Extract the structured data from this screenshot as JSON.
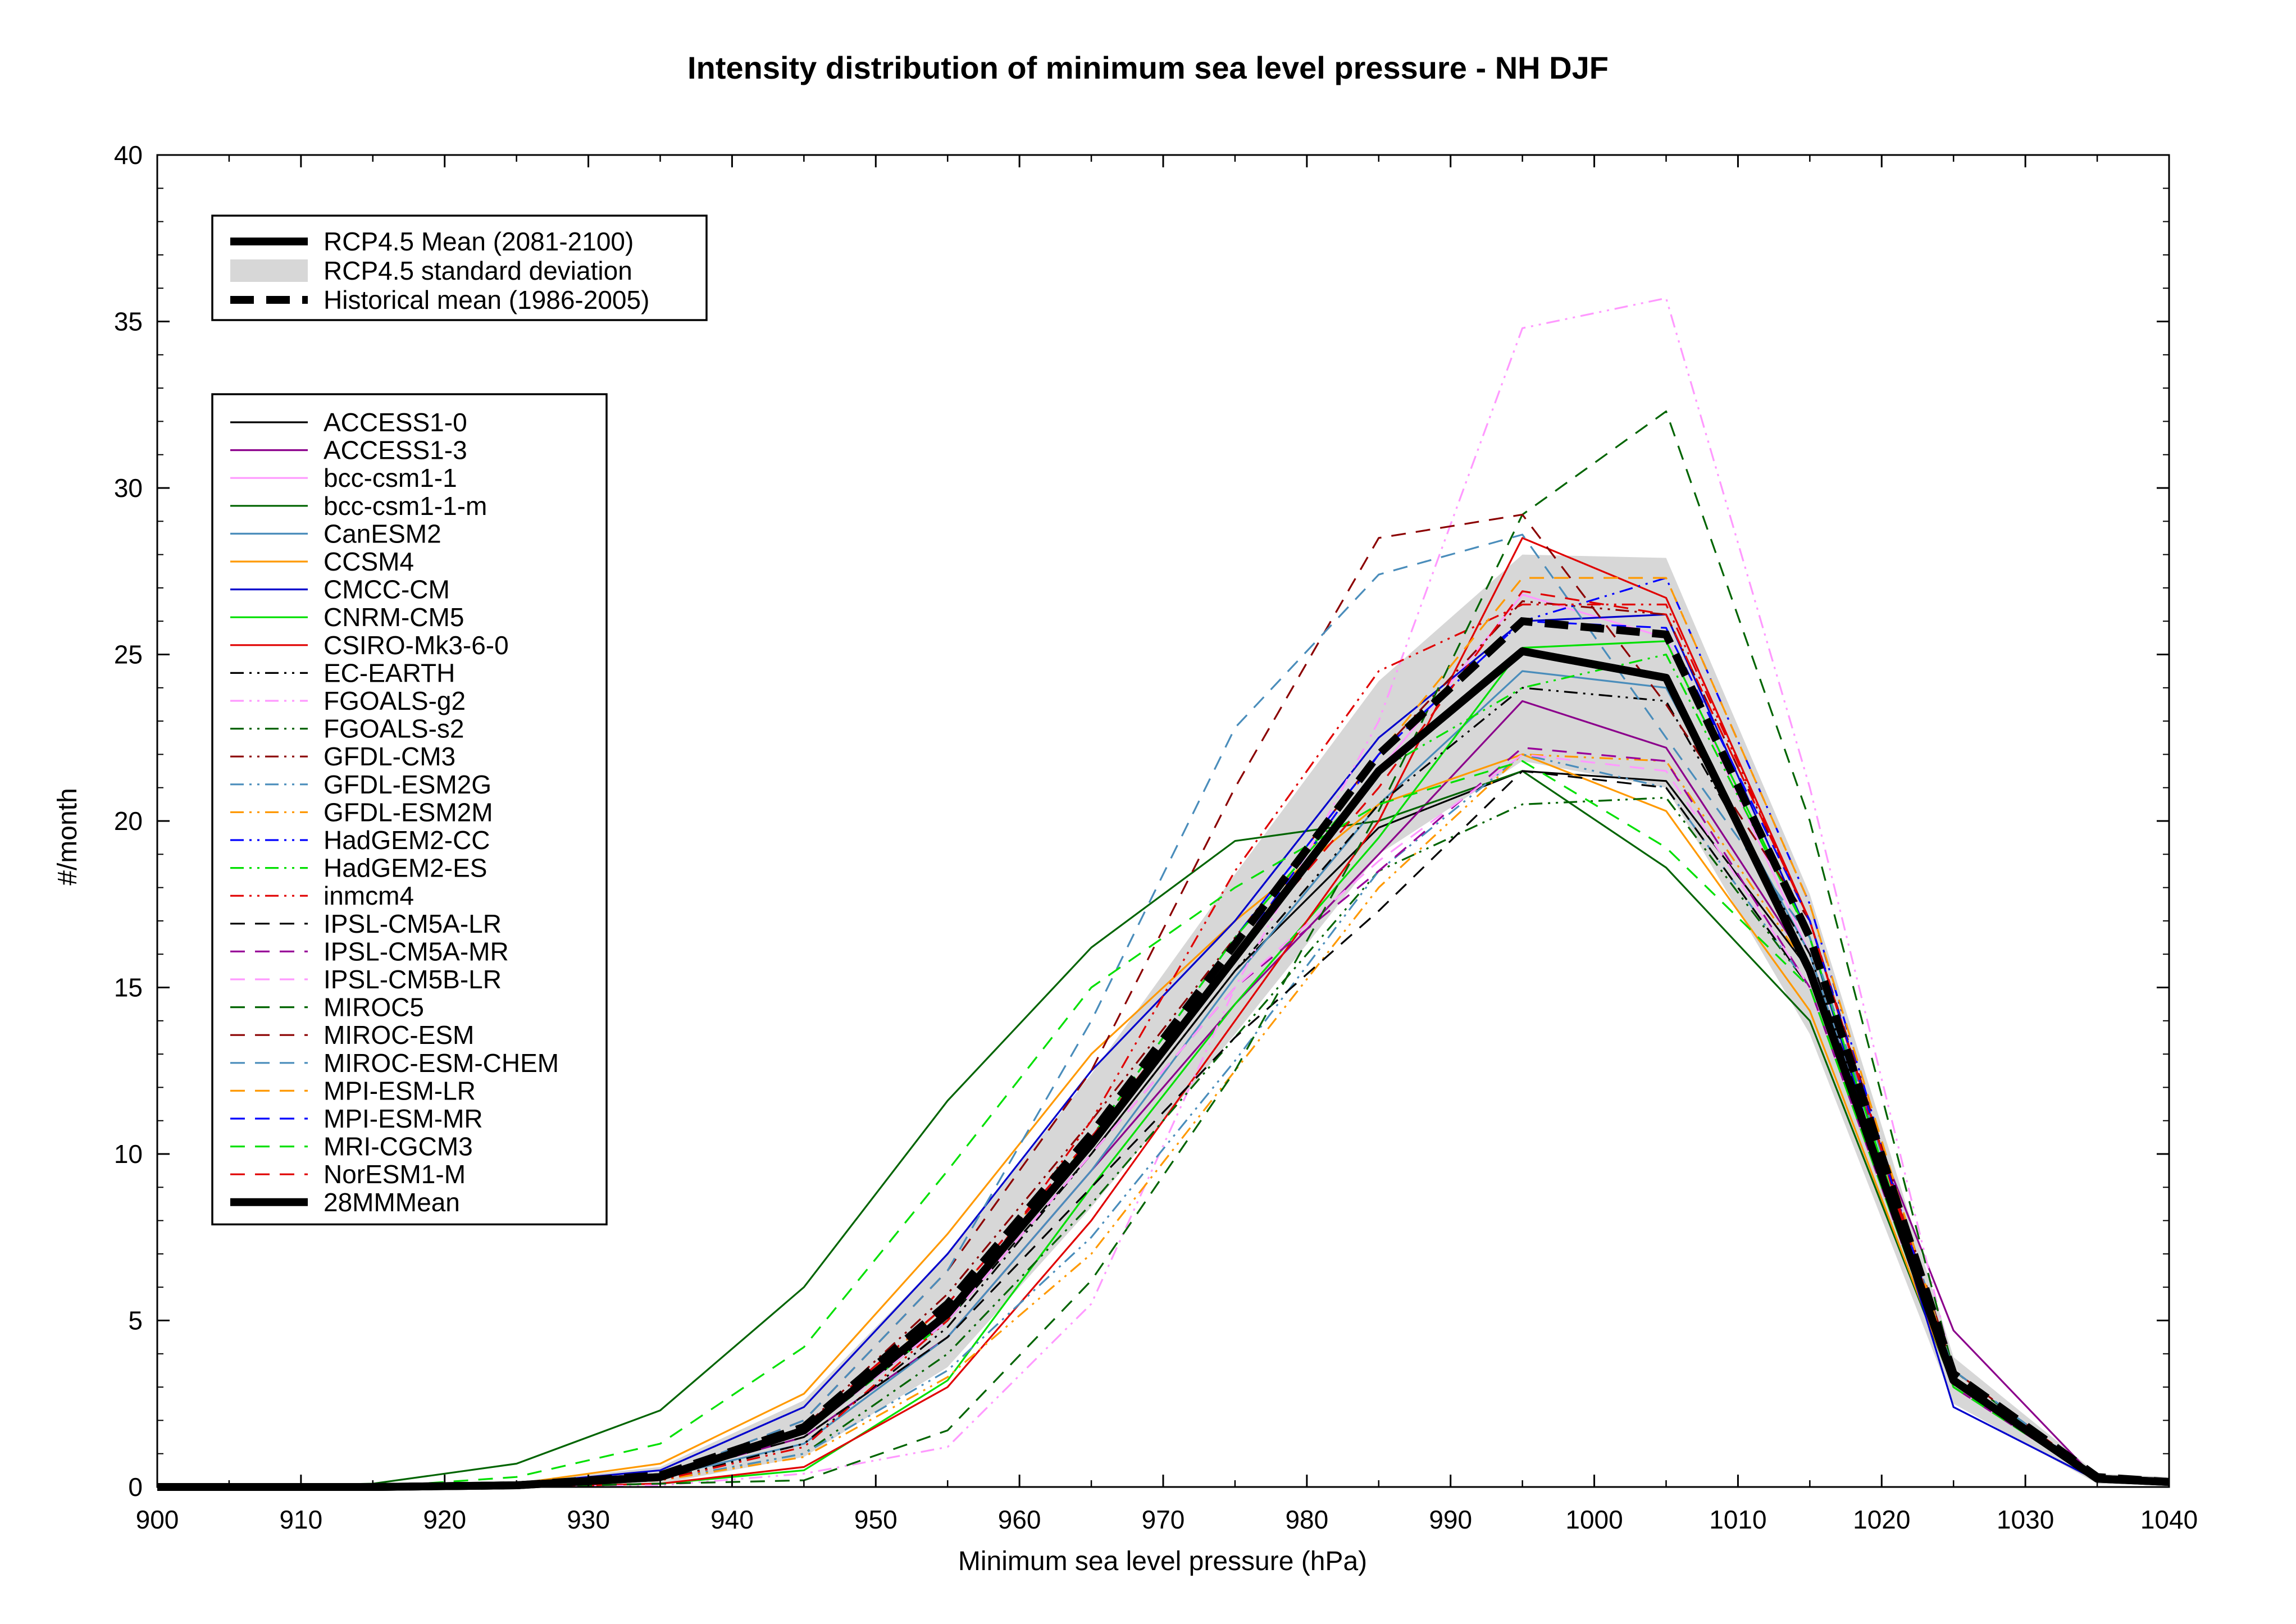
{
  "chart_data": {
    "type": "line",
    "title": "Intensity distribution of minimum sea level pressure - NH DJF",
    "xlabel": "Minimum sea level pressure (hPa)",
    "ylabel": "#/month",
    "xlim": [
      900,
      1040
    ],
    "ylim": [
      0,
      40
    ],
    "xticks": [
      "900",
      "910",
      "920",
      "930",
      "940",
      "950",
      "960",
      "970",
      "980",
      "990",
      "1000",
      "1010",
      "1020",
      "1030",
      "1040"
    ],
    "yticks": [
      "0",
      "5",
      "10",
      "15",
      "20",
      "25",
      "30",
      "35",
      "40"
    ],
    "grid": false,
    "x": [
      900,
      905,
      915,
      925,
      935,
      945,
      955,
      965,
      975,
      985,
      995,
      1005,
      1015,
      1025,
      1035,
      1040
    ],
    "legend_top": [
      {
        "label": "RCP4.5 Mean (2081-2100)",
        "style": "thick-solid"
      },
      {
        "label": "RCP4.5 standard deviation",
        "style": "band"
      },
      {
        "label": "Historical mean (1986-2005)",
        "style": "thick-dashed"
      }
    ],
    "rcp_mean": {
      "name": "RCP4.5 Mean (2081-2100)",
      "values": [
        0,
        0,
        0,
        0.05,
        0.3,
        1.7,
        5.2,
        10.3,
        15.9,
        21.5,
        25.1,
        24.3,
        15.5,
        3.2,
        0.25,
        0.15
      ]
    },
    "historical_mean": {
      "name": "Historical mean (1986-2005)",
      "values": [
        0,
        0,
        0,
        0.05,
        0.35,
        1.8,
        5.5,
        10.6,
        16.3,
        22.0,
        26.0,
        25.6,
        16.5,
        3.4,
        0.3,
        0.15
      ]
    },
    "std_band": {
      "name": "RCP4.5 standard deviation",
      "lower": [
        0,
        0,
        0,
        0,
        0.1,
        0.9,
        3.6,
        8.4,
        13.6,
        19.0,
        21.8,
        21.0,
        13.6,
        2.5,
        0.1,
        0.05
      ],
      "upper": [
        0,
        0,
        0,
        0.15,
        0.6,
        2.6,
        7.0,
        12.4,
        18.4,
        24.2,
        28.0,
        27.9,
        17.8,
        3.9,
        0.4,
        0.3
      ]
    },
    "series": [
      {
        "name": "ACCESS1-0",
        "color": "#000000",
        "dash": "solid",
        "values": [
          0,
          0,
          0,
          0.05,
          0.3,
          1.6,
          5.0,
          10.0,
          15.5,
          19.8,
          21.5,
          21.2,
          15.5,
          3.2,
          0.2,
          0.1
        ]
      },
      {
        "name": "ACCESS1-3",
        "color": "#8b008b",
        "dash": "solid",
        "values": [
          0,
          0,
          0,
          0.05,
          0.3,
          1.5,
          4.5,
          9.5,
          14.5,
          19.0,
          23.6,
          22.2,
          15.6,
          4.7,
          0.2,
          0.1
        ]
      },
      {
        "name": "bcc-csm1-1",
        "color": "#ff99ff",
        "dash": "solid",
        "values": [
          0,
          0,
          0,
          0.05,
          0.3,
          1.8,
          5.2,
          10.2,
          16.0,
          21.5,
          26.8,
          25.5,
          16.0,
          3.0,
          0.2,
          0.1
        ]
      },
      {
        "name": "bcc-csm1-1-m",
        "color": "#006400",
        "dash": "solid",
        "values": [
          0,
          0,
          0.1,
          0.7,
          2.3,
          6.0,
          11.6,
          16.2,
          19.4,
          20.0,
          21.5,
          18.6,
          14.0,
          3.0,
          0.2,
          0.1
        ]
      },
      {
        "name": "CanESM2",
        "color": "#4a8dbb",
        "dash": "solid",
        "values": [
          0,
          0,
          0,
          0.05,
          0.3,
          1.3,
          4.5,
          9.5,
          15.3,
          20.5,
          24.5,
          24.0,
          16.0,
          3.0,
          0.2,
          0.1
        ]
      },
      {
        "name": "CCSM4",
        "color": "#ff9900",
        "dash": "solid",
        "values": [
          0,
          0,
          0,
          0.1,
          0.7,
          2.8,
          7.6,
          13.0,
          17.0,
          20.5,
          22.0,
          20.3,
          14.3,
          3.0,
          0.2,
          0.1
        ]
      },
      {
        "name": "CMCC-CM",
        "color": "#0000cc",
        "dash": "solid",
        "values": [
          0,
          0,
          0,
          0.1,
          0.5,
          2.4,
          7.0,
          12.5,
          17.0,
          22.5,
          26.0,
          26.2,
          16.5,
          2.4,
          0.2,
          0.1
        ]
      },
      {
        "name": "CNRM-CM5",
        "color": "#00e000",
        "dash": "solid",
        "values": [
          0,
          0,
          0,
          0,
          0.1,
          0.5,
          3.2,
          9.0,
          14.5,
          19.5,
          25.2,
          25.4,
          16.5,
          3.0,
          0.2,
          0.1
        ]
      },
      {
        "name": "CSIRO-Mk3-6-0",
        "color": "#e00000",
        "dash": "solid",
        "values": [
          0,
          0,
          0,
          0,
          0.1,
          0.6,
          3.0,
          8.0,
          14.0,
          20.0,
          28.5,
          26.7,
          17.0,
          3.0,
          0.2,
          0.1
        ]
      },
      {
        "name": "EC-EARTH",
        "color": "#000000",
        "dash": "dashdotdot",
        "values": [
          0,
          0,
          0,
          0.05,
          0.2,
          1.3,
          4.8,
          10.0,
          15.5,
          20.5,
          24.0,
          23.6,
          16.0,
          3.2,
          0.2,
          0.1
        ]
      },
      {
        "name": "FGOALS-g2",
        "color": "#ff99ff",
        "dash": "dashdotdot",
        "values": [
          0,
          0,
          0,
          0,
          0.05,
          0.4,
          1.2,
          5.5,
          15.0,
          23.0,
          34.8,
          35.7,
          21.0,
          3.5,
          0.3,
          0.1
        ]
      },
      {
        "name": "FGOALS-s2",
        "color": "#006400",
        "dash": "dashdotdot",
        "values": [
          0,
          0,
          0,
          0.05,
          0.2,
          1.0,
          4.0,
          8.5,
          13.5,
          18.5,
          20.5,
          20.7,
          15.0,
          3.0,
          0.2,
          0.1
        ]
      },
      {
        "name": "GFDL-CM3",
        "color": "#8b0000",
        "dash": "dashdotdot",
        "values": [
          0,
          0,
          0,
          0.05,
          0.3,
          1.8,
          5.8,
          11.0,
          16.5,
          22.0,
          26.6,
          26.2,
          17.0,
          3.3,
          0.2,
          0.1
        ]
      },
      {
        "name": "GFDL-ESM2G",
        "color": "#4a8dbb",
        "dash": "dashdotdot",
        "values": [
          0,
          0,
          0,
          0.05,
          0.2,
          1.0,
          3.5,
          7.5,
          12.8,
          18.5,
          22.0,
          21.0,
          15.0,
          3.0,
          0.2,
          0.1
        ]
      },
      {
        "name": "GFDL-ESM2M",
        "color": "#ff9900",
        "dash": "dashdotdot",
        "values": [
          0,
          0,
          0,
          0.05,
          0.2,
          0.9,
          3.3,
          7.0,
          12.5,
          18.0,
          22.0,
          21.8,
          15.5,
          3.0,
          0.2,
          0.1
        ]
      },
      {
        "name": "HadGEM2-CC",
        "color": "#0000ff",
        "dash": "dashdotdot",
        "values": [
          0,
          0,
          0,
          0.05,
          0.3,
          1.6,
          5.0,
          10.5,
          16.5,
          22.0,
          26.0,
          27.3,
          17.5,
          3.0,
          0.2,
          0.1
        ]
      },
      {
        "name": "HadGEM2-ES",
        "color": "#00e000",
        "dash": "dashdotdot",
        "values": [
          0,
          0,
          0,
          0.05,
          0.3,
          1.6,
          5.0,
          10.5,
          16.5,
          21.5,
          24.0,
          25.0,
          16.5,
          3.0,
          0.2,
          0.1
        ]
      },
      {
        "name": "inmcm4",
        "color": "#e00000",
        "dash": "dashdotdot",
        "values": [
          0,
          0,
          0,
          0.05,
          0.2,
          1.2,
          5.0,
          11.0,
          18.5,
          24.5,
          26.5,
          26.5,
          17.0,
          3.2,
          0.2,
          0.1
        ]
      },
      {
        "name": "IPSL-CM5A-LR",
        "color": "#000000",
        "dash": "dashed",
        "values": [
          0,
          0,
          0,
          0.05,
          0.3,
          1.5,
          4.5,
          9.0,
          13.5,
          17.3,
          21.5,
          21.0,
          15.0,
          3.0,
          0.2,
          0.1
        ]
      },
      {
        "name": "IPSL-CM5A-MR",
        "color": "#990099",
        "dash": "dashed",
        "values": [
          0,
          0,
          0,
          0.05,
          0.3,
          1.6,
          5.0,
          10.0,
          15.0,
          18.5,
          22.2,
          21.8,
          15.0,
          3.0,
          0.2,
          0.1
        ]
      },
      {
        "name": "IPSL-CM5B-LR",
        "color": "#ff99ff",
        "dash": "dashed",
        "values": [
          0,
          0,
          0,
          0.05,
          0.3,
          1.6,
          5.0,
          10.0,
          15.0,
          18.8,
          22.0,
          21.5,
          15.0,
          3.0,
          0.2,
          0.1
        ]
      },
      {
        "name": "MIROC5",
        "color": "#006400",
        "dash": "dashed",
        "values": [
          0,
          0,
          0,
          0,
          0.1,
          0.2,
          1.7,
          6.2,
          12.5,
          20.3,
          29.2,
          32.3,
          20.0,
          3.5,
          0.2,
          0.1
        ]
      },
      {
        "name": "MIROC-ESM",
        "color": "#8b0000",
        "dash": "dashed",
        "values": [
          0,
          0,
          0,
          0.05,
          0.3,
          2.0,
          6.5,
          12.5,
          21.0,
          28.5,
          29.2,
          23.5,
          17.0,
          3.5,
          0.3,
          0.1
        ]
      },
      {
        "name": "MIROC-ESM-CHEM",
        "color": "#4a8dbb",
        "dash": "dashed",
        "values": [
          0,
          0,
          0,
          0.05,
          0.3,
          2.0,
          6.5,
          14.0,
          22.8,
          27.4,
          28.6,
          22.5,
          16.5,
          3.5,
          0.3,
          0.1
        ]
      },
      {
        "name": "MPI-ESM-LR",
        "color": "#ff9900",
        "dash": "dashed",
        "values": [
          0,
          0,
          0,
          0.05,
          0.3,
          1.7,
          5.5,
          10.5,
          16.0,
          22.0,
          27.3,
          27.3,
          17.5,
          3.3,
          0.2,
          0.1
        ]
      },
      {
        "name": "MPI-ESM-MR",
        "color": "#0000ff",
        "dash": "dashed",
        "values": [
          0,
          0,
          0,
          0.05,
          0.3,
          1.8,
          5.5,
          10.5,
          16.0,
          22.0,
          26.0,
          25.8,
          17.0,
          3.2,
          0.2,
          0.1
        ]
      },
      {
        "name": "MRI-CGCM3",
        "color": "#00e000",
        "dash": "dashed",
        "values": [
          0,
          0,
          0,
          0.3,
          1.3,
          4.2,
          9.5,
          15.0,
          18.0,
          20.5,
          21.8,
          19.2,
          15.0,
          3.0,
          0.2,
          0.1
        ]
      },
      {
        "name": "NorESM1-M",
        "color": "#e00000",
        "dash": "dashed",
        "values": [
          0,
          0,
          0,
          0.05,
          0.3,
          1.8,
          5.5,
          10.5,
          16.0,
          21.0,
          26.9,
          26.2,
          17.0,
          3.2,
          0.2,
          0.1
        ]
      },
      {
        "name": "28MMMean",
        "color": "#000000",
        "dash": "thick-solid",
        "values": [
          0,
          0,
          0,
          0.05,
          0.3,
          1.7,
          5.2,
          10.3,
          15.9,
          21.5,
          25.1,
          24.3,
          15.5,
          3.2,
          0.25,
          0.15
        ]
      }
    ]
  }
}
